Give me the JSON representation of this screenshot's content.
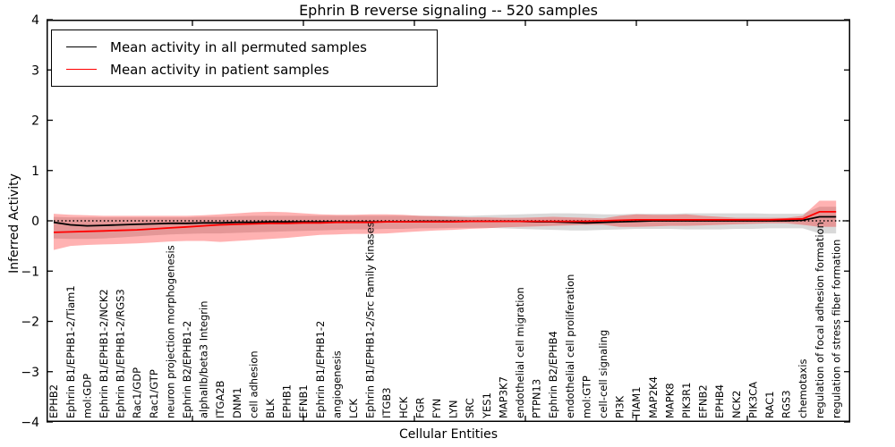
{
  "chart_data": {
    "type": "line",
    "title": "Ephrin B reverse signaling -- 520 samples",
    "xlabel": "Cellular Entities",
    "ylabel": "Inferred Activity",
    "ylim": [
      -4,
      4
    ],
    "yticks": [
      4,
      3,
      2,
      1,
      0,
      -1,
      -2,
      -3,
      -4
    ],
    "ytick_labels": [
      "4",
      "3",
      "2",
      "1",
      "0",
      "−1",
      "−2",
      "−3",
      "−4"
    ],
    "grid": false,
    "legend_position": "upper left",
    "baseline": {
      "y": 0,
      "style": "dotted",
      "color": "#000000"
    },
    "colors": {
      "permuted_line": "#000000",
      "patient_line": "#ff0000",
      "permuted_band": "rgba(0,0,0,0.15)",
      "patient_band": "rgba(255,0,0,0.30)"
    },
    "categories": [
      "EPHB2",
      "Ephrin B1/EPHB1-2/Tiam1",
      "mol:GDP",
      "Ephrin B1/EPHB1-2/NCK2",
      "Ephrin B1/EPHB1-2/RGS3",
      "Rac1/GDP",
      "Rac1/GTP",
      "neuron projection morphogenesis",
      "Ephrin B2/EPHB1-2",
      "alphaIIb/beta3 Integrin",
      "ITGA2B",
      "DNM1",
      "cell adhesion",
      "BLK",
      "EPHB1",
      "EFNB1",
      "Ephrin B1/EPHB1-2",
      "angiogenesis",
      "LCK",
      "Ephrin B1/EPHB1-2/Src Family Kinases",
      "ITGB3",
      "HCK",
      "FGR",
      "FYN",
      "LYN",
      "SRC",
      "YES1",
      "MAP3K7",
      "endothelial cell migration",
      "PTPN13",
      "Ephrin B2/EPHB4",
      "endothelial cell proliferation",
      "mol:GTP",
      "cell-cell signaling",
      "PI3K",
      "TIAM1",
      "MAP2K4",
      "MAPK8",
      "PIK3R1",
      "EFNB2",
      "EPHB4",
      "NCK2",
      "PIK3CA",
      "RAC1",
      "RGS3",
      "chemotaxis",
      "regulation of focal adhesion formation",
      "regulation of stress fiber formation"
    ],
    "series": [
      {
        "name": "Mean activity in all permuted samples",
        "color": "#000000",
        "values": [
          -0.03,
          -0.08,
          -0.1,
          -0.09,
          -0.08,
          -0.07,
          -0.06,
          -0.05,
          -0.05,
          -0.04,
          -0.04,
          -0.03,
          -0.03,
          -0.02,
          -0.02,
          -0.02,
          -0.02,
          -0.02,
          -0.02,
          -0.02,
          -0.02,
          -0.02,
          -0.01,
          -0.01,
          -0.01,
          -0.01,
          -0.01,
          -0.01,
          -0.01,
          -0.02,
          -0.02,
          -0.03,
          -0.04,
          -0.03,
          -0.02,
          -0.01,
          0.0,
          0.0,
          0.0,
          0.0,
          0.0,
          0.0,
          0.0,
          0.0,
          0.0,
          0.01,
          0.08,
          0.08
        ],
        "band_hi": [
          0.08,
          0.07,
          0.07,
          0.07,
          0.07,
          0.07,
          0.07,
          0.07,
          0.07,
          0.08,
          0.08,
          0.09,
          0.1,
          0.1,
          0.1,
          0.1,
          0.1,
          0.1,
          0.1,
          0.1,
          0.1,
          0.1,
          0.1,
          0.1,
          0.1,
          0.1,
          0.11,
          0.12,
          0.13,
          0.14,
          0.15,
          0.15,
          0.14,
          0.13,
          0.13,
          0.14,
          0.14,
          0.14,
          0.15,
          0.15,
          0.15,
          0.15,
          0.15,
          0.14,
          0.14,
          0.14,
          0.28,
          0.28
        ],
        "band_lo": [
          -0.35,
          -0.36,
          -0.36,
          -0.35,
          -0.33,
          -0.31,
          -0.29,
          -0.27,
          -0.26,
          -0.25,
          -0.25,
          -0.24,
          -0.23,
          -0.22,
          -0.21,
          -0.2,
          -0.19,
          -0.18,
          -0.17,
          -0.17,
          -0.16,
          -0.16,
          -0.15,
          -0.15,
          -0.14,
          -0.14,
          -0.14,
          -0.15,
          -0.16,
          -0.17,
          -0.18,
          -0.19,
          -0.19,
          -0.18,
          -0.17,
          -0.16,
          -0.16,
          -0.16,
          -0.17,
          -0.17,
          -0.17,
          -0.16,
          -0.16,
          -0.15,
          -0.15,
          -0.15,
          -0.25,
          -0.25
        ]
      },
      {
        "name": "Mean activity in patient samples",
        "color": "#ff0000",
        "values": [
          -0.23,
          -0.22,
          -0.21,
          -0.2,
          -0.19,
          -0.18,
          -0.16,
          -0.14,
          -0.12,
          -0.1,
          -0.08,
          -0.07,
          -0.06,
          -0.05,
          -0.05,
          -0.04,
          -0.04,
          -0.03,
          -0.03,
          -0.03,
          -0.02,
          -0.02,
          -0.02,
          -0.02,
          -0.02,
          -0.01,
          -0.01,
          -0.01,
          -0.01,
          -0.01,
          -0.01,
          -0.01,
          -0.01,
          0.0,
          0.01,
          0.02,
          0.02,
          0.02,
          0.02,
          0.02,
          0.02,
          0.02,
          0.02,
          0.02,
          0.03,
          0.04,
          0.18,
          0.18
        ],
        "band_hi": [
          0.14,
          0.12,
          0.11,
          0.1,
          0.1,
          0.1,
          0.1,
          0.1,
          0.1,
          0.11,
          0.13,
          0.15,
          0.17,
          0.18,
          0.17,
          0.15,
          0.13,
          0.12,
          0.12,
          0.13,
          0.13,
          0.12,
          0.1,
          0.09,
          0.08,
          0.07,
          0.07,
          0.06,
          0.06,
          0.07,
          0.08,
          0.07,
          0.06,
          0.05,
          0.1,
          0.13,
          0.12,
          0.12,
          0.13,
          0.1,
          0.08,
          0.06,
          0.06,
          0.06,
          0.06,
          0.1,
          0.4,
          0.4
        ],
        "band_lo": [
          -0.58,
          -0.5,
          -0.48,
          -0.47,
          -0.46,
          -0.45,
          -0.43,
          -0.41,
          -0.4,
          -0.4,
          -0.42,
          -0.4,
          -0.38,
          -0.36,
          -0.34,
          -0.31,
          -0.28,
          -0.27,
          -0.26,
          -0.26,
          -0.25,
          -0.23,
          -0.21,
          -0.19,
          -0.18,
          -0.16,
          -0.15,
          -0.13,
          -0.12,
          -0.11,
          -0.1,
          -0.09,
          -0.08,
          -0.08,
          -0.12,
          -0.12,
          -0.11,
          -0.1,
          -0.1,
          -0.09,
          -0.08,
          -0.07,
          -0.06,
          -0.05,
          -0.05,
          -0.08,
          -0.12,
          -0.12
        ]
      }
    ]
  }
}
